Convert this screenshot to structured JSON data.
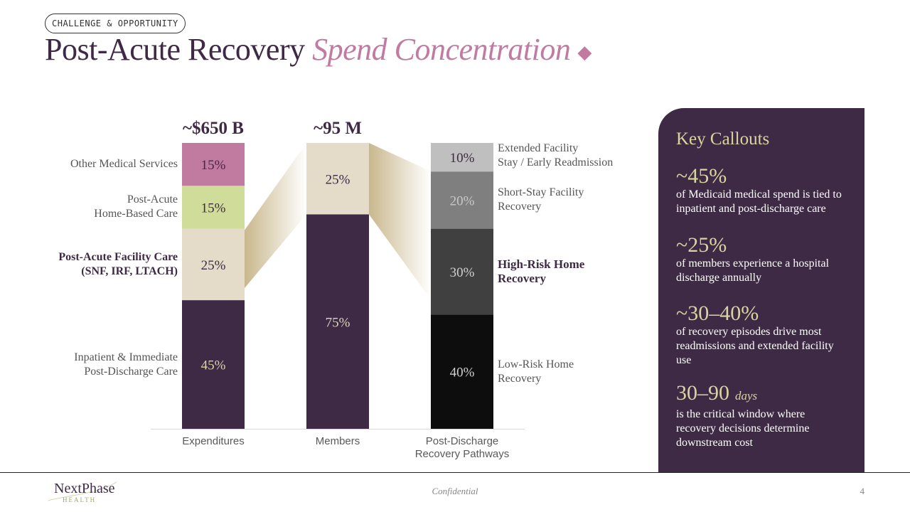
{
  "header": {
    "tag": "CHALLENGE & OPPORTUNITY",
    "title_main": "Post-Acute Recovery",
    "title_accent": "Spend Concentration",
    "diamond_icon": "diamond"
  },
  "chart_data": {
    "type": "stacked-bar",
    "categories": [
      "Expenditures",
      "Members",
      "Post-Discharge Recovery Pathways"
    ],
    "category_lines": [
      [
        "Expenditures"
      ],
      [
        "Members"
      ],
      [
        "Post-Discharge",
        "Recovery Pathways"
      ]
    ],
    "totals": [
      "~$650 B",
      "~95 M",
      ""
    ],
    "series": [
      {
        "bar": "Expenditures",
        "segments": [
          {
            "label": "Inpatient & Immediate Post-Discharge Care",
            "lines": [
              "Inpatient & Immediate",
              "Post-Discharge Care"
            ],
            "value": 45,
            "display": "45%",
            "color": "#3f2a45",
            "text_color": "#d9d5a0",
            "bold": false
          },
          {
            "label": "Post-Acute Facility Care (SNF, IRF, LTACH)",
            "lines": [
              "Post-Acute Facility Care",
              "(SNF, IRF, LTACH)"
            ],
            "value": 25,
            "display": "25%",
            "color": "#e4dcc8",
            "text_color": "#3f2a45",
            "bold": true
          },
          {
            "label": "Post-Acute Home-Based Care",
            "lines": [
              "Post-Acute",
              "Home-Based Care"
            ],
            "value": 15,
            "display": "15%",
            "color": "#d0dc9a",
            "text_color": "#3f2a45",
            "bold": false
          },
          {
            "label": "Other Medical Services",
            "lines": [
              "Other Medical Services"
            ],
            "value": 15,
            "display": "15%",
            "color": "#c27ba0",
            "text_color": "#3f2a45",
            "bold": false
          }
        ]
      },
      {
        "bar": "Members",
        "segments": [
          {
            "value": 75,
            "display": "75%",
            "color": "#3f2a45",
            "text_color": "#d9d5c0"
          },
          {
            "value": 25,
            "display": "25%",
            "color": "#e4dcc8",
            "text_color": "#3f2a45"
          }
        ]
      },
      {
        "bar": "Post-Discharge Recovery Pathways",
        "segments": [
          {
            "label": "Low-Risk Home Recovery",
            "lines": [
              "Low-Risk Home",
              "Recovery"
            ],
            "value": 40,
            "display": "40%",
            "color": "#0d0d0d",
            "text_color": "#d0d0d0",
            "bold": false
          },
          {
            "label": "High-Risk Home Recovery",
            "lines": [
              "High-Risk Home",
              "Recovery"
            ],
            "value": 30,
            "display": "30%",
            "color": "#404040",
            "text_color": "#d0d0d0",
            "bold": true
          },
          {
            "label": "Short-Stay Facility Recovery",
            "lines": [
              "Short-Stay Facility",
              "Recovery"
            ],
            "value": 20,
            "display": "20%",
            "color": "#7f7f7f",
            "text_color": "#c8c8c8",
            "bold": false
          },
          {
            "label": "Extended Facility Stay / Early Readmission",
            "lines": [
              "Extended Facility",
              "Stay / Early Readmission"
            ],
            "value": 10,
            "display": "10%",
            "color": "#bfbfbf",
            "text_color": "#3f2a45",
            "bold": false
          }
        ]
      }
    ],
    "connector_color": "#c9b88e"
  },
  "callouts": {
    "title": "Key Callouts",
    "items": [
      {
        "value": "~45%",
        "unit": "",
        "desc": "of Medicaid medical spend is tied to inpatient and post-discharge care"
      },
      {
        "value": "~25%",
        "unit": "",
        "desc": "of members experience a hospital discharge annually"
      },
      {
        "value": "~30–40%",
        "unit": "",
        "desc": "of recovery episodes drive most readmissions and extended facility use"
      },
      {
        "value": "30–90",
        "unit": "days",
        "desc": "is the critical window where recovery decisions determine downstream cost"
      }
    ]
  },
  "footer": {
    "logo_name": "NextPhase",
    "logo_sub": "HEALTH",
    "confidential": "Confidential",
    "page": "4"
  }
}
